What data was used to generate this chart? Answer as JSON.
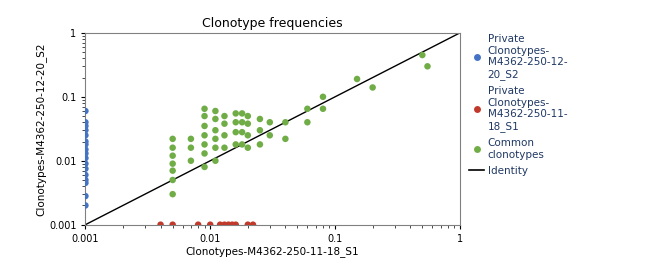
{
  "title": "Clonotype frequencies",
  "xlabel": "Clonotypes-M4362-250-11-18_S1",
  "ylabel": "Clonotypes-M4362-250-12-20_S2",
  "xlim": [
    0.001,
    1
  ],
  "ylim": [
    0.001,
    1
  ],
  "blue_points": {
    "x": [
      0.001,
      0.001,
      0.001,
      0.001,
      0.001,
      0.001,
      0.001,
      0.001,
      0.001,
      0.001,
      0.001,
      0.001,
      0.001,
      0.001,
      0.001,
      0.001,
      0.001
    ],
    "y": [
      0.06,
      0.04,
      0.035,
      0.03,
      0.025,
      0.02,
      0.018,
      0.015,
      0.013,
      0.011,
      0.009,
      0.0075,
      0.006,
      0.005,
      0.0045,
      0.0028,
      0.002
    ],
    "color": "#4472C4",
    "label": "Private\nClonotypes-\nM4362-250-12-\n20_S2"
  },
  "red_points": {
    "x": [
      0.004,
      0.005,
      0.008,
      0.01,
      0.012,
      0.013,
      0.014,
      0.015,
      0.016,
      0.02,
      0.022
    ],
    "y": [
      0.001,
      0.001,
      0.001,
      0.001,
      0.001,
      0.001,
      0.001,
      0.001,
      0.001,
      0.001,
      0.001
    ],
    "color": "#C0392B",
    "label": "Private\nClonotypes-\nM4362-250-11-\n18_S1"
  },
  "green_points": {
    "x": [
      0.005,
      0.005,
      0.005,
      0.005,
      0.005,
      0.005,
      0.005,
      0.007,
      0.007,
      0.007,
      0.009,
      0.009,
      0.009,
      0.009,
      0.009,
      0.009,
      0.009,
      0.011,
      0.011,
      0.011,
      0.011,
      0.011,
      0.011,
      0.013,
      0.013,
      0.013,
      0.013,
      0.016,
      0.016,
      0.016,
      0.016,
      0.018,
      0.018,
      0.018,
      0.018,
      0.02,
      0.02,
      0.02,
      0.02,
      0.025,
      0.025,
      0.025,
      0.03,
      0.03,
      0.04,
      0.04,
      0.06,
      0.06,
      0.08,
      0.08,
      0.15,
      0.2,
      0.5,
      0.55
    ],
    "y": [
      0.022,
      0.016,
      0.012,
      0.009,
      0.007,
      0.005,
      0.003,
      0.022,
      0.016,
      0.01,
      0.065,
      0.05,
      0.035,
      0.025,
      0.018,
      0.013,
      0.008,
      0.06,
      0.045,
      0.03,
      0.022,
      0.016,
      0.01,
      0.05,
      0.038,
      0.025,
      0.016,
      0.055,
      0.04,
      0.028,
      0.018,
      0.055,
      0.04,
      0.028,
      0.018,
      0.05,
      0.038,
      0.025,
      0.016,
      0.045,
      0.03,
      0.018,
      0.04,
      0.025,
      0.04,
      0.022,
      0.065,
      0.04,
      0.1,
      0.065,
      0.19,
      0.14,
      0.45,
      0.3
    ],
    "color": "#70AD47",
    "label": "Common\nclonotypes"
  },
  "identity_color": "#000000",
  "marker_size": 22,
  "title_fontsize": 9,
  "label_fontsize": 7.5,
  "tick_fontsize": 7,
  "legend_fontsize": 7.5,
  "legend_text_color": "#1F3864",
  "background_color": "#FFFFFF"
}
